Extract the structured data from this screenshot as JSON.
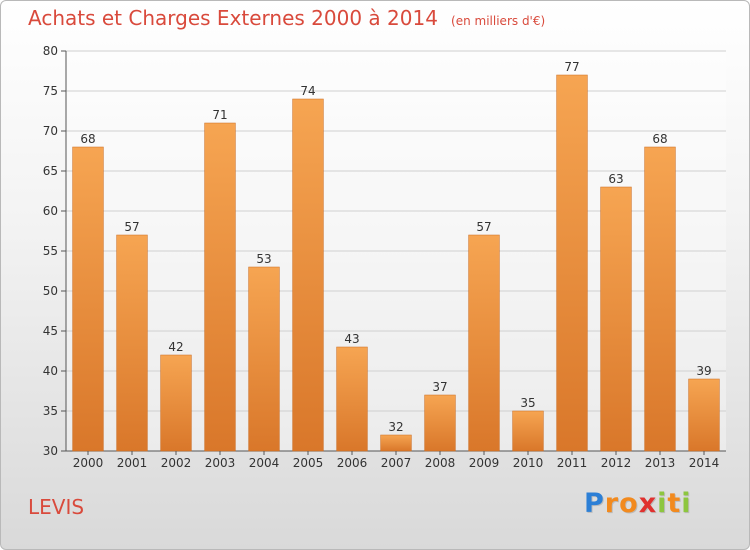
{
  "chart_data": {
    "type": "bar",
    "title": "Achats et Charges Externes 2000 à 2014",
    "subtitle": "(en milliers d'€)",
    "categories": [
      "2000",
      "2001",
      "2002",
      "2003",
      "2004",
      "2005",
      "2006",
      "2007",
      "2008",
      "2009",
      "2010",
      "2011",
      "2012",
      "2013",
      "2014"
    ],
    "values": [
      68,
      57,
      42,
      71,
      53,
      74,
      43,
      32,
      37,
      57,
      35,
      77,
      63,
      68,
      39
    ],
    "ylim": [
      30,
      80
    ],
    "yticks": [
      30,
      35,
      40,
      45,
      50,
      55,
      60,
      65,
      70,
      75,
      80
    ],
    "grid": true,
    "xlabel": "",
    "ylabel": ""
  },
  "colors": {
    "title": "#d94a3c",
    "bar_light": "#f6a552",
    "bar_dark": "#d9772a",
    "grid": "#d0d0d0",
    "axis": "#555555"
  },
  "city": "LEVIS",
  "logo": {
    "letters": [
      "P",
      "r",
      "o",
      "x",
      "i",
      "t",
      "i"
    ],
    "colors": [
      "#2c7fd6",
      "#f28a1e",
      "#f28a1e",
      "#e0312f",
      "#8dc63f",
      "#f28a1e",
      "#8dc63f"
    ]
  }
}
